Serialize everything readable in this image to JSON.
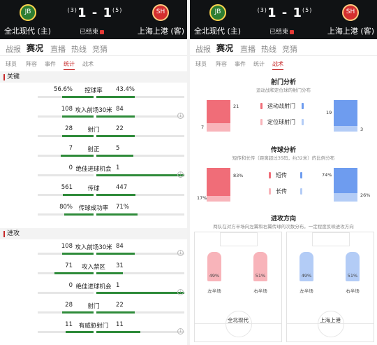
{
  "match": {
    "home_team": "全北现代 (主)",
    "away_team": "上海上港 (客)",
    "home_crest_text": "JB",
    "away_crest_text": "SH",
    "score_home": "1",
    "score_away": "1",
    "pen_home": "(3)",
    "pen_away": "(5)",
    "score_sep": "-",
    "status": "已结束"
  },
  "tabs": [
    "战报",
    "赛况",
    "直播",
    "热线",
    "竞猜"
  ],
  "active_tab": "赛况",
  "subtabs_left": [
    "球员",
    "阵容",
    "事件",
    "统计",
    "战术"
  ],
  "subtabs_right": [
    "球员",
    "阵容",
    "事件",
    "统计",
    "战术"
  ],
  "sections": {
    "key": "关键",
    "attack": "进攻"
  },
  "key_stats": [
    {
      "left": "56.6%",
      "label": "控球率",
      "right": "43.4%",
      "share": 0.566,
      "info": false
    },
    {
      "left": "108",
      "label": "攻入前场30米",
      "right": "84",
      "share": 0.5625,
      "info": true
    },
    {
      "left": "28",
      "label": "射门",
      "right": "22",
      "share": 0.56,
      "info": false
    },
    {
      "left": "7",
      "label": "射正",
      "right": "5",
      "share": 0.583,
      "info": false
    },
    {
      "left": "0",
      "label": "绝佳进球机会",
      "right": "1",
      "share": 0.0,
      "info": true
    },
    {
      "left": "561",
      "label": "传球",
      "right": "447",
      "share": 0.556,
      "info": false
    },
    {
      "left": "80%",
      "label": "传球成功率",
      "right": "71%",
      "share": 0.53,
      "info": false
    }
  ],
  "attack_stats": [
    {
      "left": "108",
      "label": "攻入前场30米",
      "right": "84",
      "share": 0.5625,
      "info": true
    },
    {
      "left": "71",
      "label": "攻入禁区",
      "right": "31",
      "share": 0.696,
      "info": false
    },
    {
      "left": "0",
      "label": "绝佳进球机会",
      "right": "1",
      "share": 0.0,
      "info": true
    },
    {
      "left": "28",
      "label": "射门",
      "right": "22",
      "share": 0.56,
      "info": false
    },
    {
      "left": "11",
      "label": "有威胁射门",
      "right": "11",
      "share": 0.5,
      "info": true
    }
  ],
  "shots_analysis": {
    "title": "射门分析",
    "subtitle": "运动战和定位球的射门分布",
    "legend_open_play": "运动战射门",
    "legend_set_piece": "定位球射门",
    "home_open_play": "21",
    "home_set_piece": "7",
    "away_open_play": "19",
    "away_set_piece": "3"
  },
  "pass_analysis": {
    "title": "传球分析",
    "subtitle": "短传和长传（距离超过35码，约32米）的比例分布",
    "legend_short": "短传",
    "legend_long": "长传",
    "home_short": "83%",
    "home_long": "17%",
    "away_short": "74%",
    "away_long": "26%"
  },
  "attack_direction": {
    "title": "进攻方向",
    "subtitle": "两队在对方半场向左翼和右翼传球的次数分布，一定程度反映进攻方向",
    "left_side_label": "左半场",
    "right_side_label": "右半场",
    "home": {
      "name": "全北现代",
      "left": "49%",
      "right": "51%"
    },
    "away": {
      "name": "上海上港",
      "left": "49%",
      "right": "51%"
    }
  },
  "colors": {
    "home": "#f06d78",
    "home_light": "#f8b4ba",
    "away": "#6e9cef",
    "away_light": "#b3ccf6",
    "bar": "#2e8b3a",
    "accent": "#c62828"
  }
}
